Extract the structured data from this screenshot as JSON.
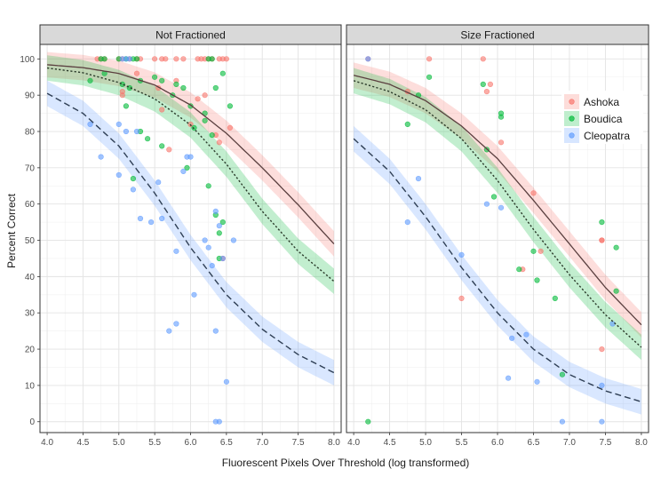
{
  "chart_data": {
    "type": "scatter",
    "xlabel": "Fluorescent Pixels Over Threshold (log transformed)",
    "ylabel": "Percent Correct",
    "xlim": [
      3.9,
      8.1
    ],
    "ylim": [
      -3,
      104
    ],
    "x_ticks": [
      4.0,
      4.5,
      5.0,
      5.5,
      6.0,
      6.5,
      7.0,
      7.5,
      8.0
    ],
    "y_ticks": [
      0,
      10,
      20,
      30,
      40,
      50,
      60,
      70,
      80,
      90,
      100
    ],
    "grid": true,
    "legend_position": "top-right",
    "colors": {
      "Ashoka": "#F8766D",
      "Boudica": "#00BA38",
      "Cleopatra": "#619CFF"
    },
    "series_styles": {
      "Ashoka": "solid",
      "Boudica": "dotted",
      "Cleopatra": "dashed"
    },
    "legend": [
      "Ashoka",
      "Boudica",
      "Cleopatra"
    ],
    "panels": [
      {
        "title": "Not Fractioned",
        "fits": [
          {
            "name": "Ashoka",
            "x": [
              4.0,
              4.5,
              5.0,
              5.5,
              6.0,
              6.5,
              7.0,
              7.5,
              8.0
            ],
            "y": [
              98.4,
              97.6,
              96.0,
              92.8,
              87.3,
              79.5,
              70.0,
              59.8,
              49.0
            ],
            "band": 3.5
          },
          {
            "name": "Boudica",
            "x": [
              4.0,
              4.5,
              5.0,
              5.5,
              6.0,
              6.5,
              7.0,
              7.5,
              8.0
            ],
            "y": [
              97.5,
              96.2,
              93.5,
              89.0,
              81.8,
              71.0,
              58.0,
              47.0,
              38.7
            ],
            "band": 3.5
          },
          {
            "name": "Cleopatra",
            "x": [
              4.0,
              4.5,
              5.0,
              5.5,
              6.0,
              6.5,
              7.0,
              7.5,
              8.0
            ],
            "y": [
              90.5,
              85.0,
              76.0,
              63.0,
              48.0,
              35.0,
              25.5,
              18.5,
              13.5
            ],
            "band": 3.5
          }
        ],
        "points": [
          {
            "name": "Ashoka",
            "x": [
              4.7,
              4.75,
              4.8,
              5.0,
              5.05,
              5.15,
              5.25,
              5.3,
              5.5,
              5.6,
              5.65,
              5.8,
              5.9,
              6.1,
              6.15,
              6.2,
              6.25,
              6.3,
              6.4,
              6.45,
              6.5,
              5.05,
              5.25,
              5.55,
              5.8,
              6.0,
              6.1,
              6.2,
              6.4,
              6.55,
              5.05,
              5.7,
              6.35,
              5.6,
              6.45
            ],
            "y": [
              100,
              100,
              100,
              100,
              100,
              100,
              100,
              100,
              100,
              100,
              100,
              100,
              100,
              100,
              100,
              100,
              100,
              100,
              100,
              100,
              100,
              91,
              96,
              92,
              94,
              82,
              89,
              90,
              77,
              81,
              90,
              75,
              79,
              86,
              45
            ]
          },
          {
            "name": "Boudica",
            "x": [
              4.75,
              4.8,
              5.0,
              5.1,
              5.2,
              5.25,
              6.25,
              6.3,
              4.6,
              4.8,
              5.05,
              5.15,
              5.3,
              5.5,
              5.6,
              5.8,
              5.9,
              6.0,
              6.2,
              6.35,
              6.45,
              6.55,
              5.1,
              5.3,
              5.4,
              5.6,
              5.75,
              5.95,
              6.05,
              6.2,
              6.3,
              6.35,
              6.4,
              6.4,
              6.45,
              5.2,
              6.25
            ],
            "y": [
              100,
              100,
              100,
              100,
              100,
              100,
              100,
              100,
              94,
              96,
              93,
              92,
              94,
              95,
              94,
              93,
              92,
              87,
              85,
              92,
              96,
              87,
              87,
              80,
              78,
              76,
              90,
              70,
              81,
              83,
              79,
              57,
              52,
              45,
              55,
              67,
              65
            ]
          },
          {
            "name": "Cleopatra",
            "x": [
              5.05,
              5.1,
              5.15,
              4.6,
              4.75,
              5.0,
              5.1,
              5.2,
              5.3,
              5.45,
              5.6,
              5.7,
              5.8,
              5.9,
              5.95,
              6.0,
              6.05,
              6.2,
              6.25,
              6.3,
              6.35,
              6.4,
              6.45,
              5.55,
              5.0,
              5.25,
              5.8,
              6.35,
              6.4,
              6.35,
              6.5,
              6.6
            ],
            "y": [
              100,
              100,
              100,
              82,
              73,
              82,
              80,
              64,
              56,
              55,
              56,
              25,
              27,
              69,
              73,
              73,
              35,
              50,
              48,
              43,
              58,
              54,
              45,
              66,
              68,
              80,
              47,
              25,
              0,
              0,
              11,
              50
            ]
          }
        ]
      },
      {
        "title": "Size Fractioned",
        "fits": [
          {
            "name": "Ashoka",
            "x": [
              4.0,
              4.5,
              5.0,
              5.5,
              6.0,
              6.5,
              7.0,
              7.5,
              8.0
            ],
            "y": [
              95.5,
              93.0,
              88.5,
              81.5,
              72.5,
              61.0,
              49.0,
              37.0,
              26.7
            ],
            "band": 3.5
          },
          {
            "name": "Boudica",
            "x": [
              4.0,
              4.5,
              5.0,
              5.5,
              6.0,
              6.5,
              7.0,
              7.5,
              8.0
            ],
            "y": [
              94.0,
              91.0,
              86.0,
              78.0,
              66.5,
              53.0,
              40.5,
              29.5,
              20.5
            ],
            "band": 3.5
          },
          {
            "name": "Cleopatra",
            "x": [
              4.0,
              4.5,
              5.0,
              5.5,
              6.0,
              6.5,
              7.0,
              7.5,
              8.0
            ],
            "y": [
              78.0,
              69.0,
              56.5,
              42.5,
              30.0,
              20.0,
              13.0,
              8.5,
              5.5
            ],
            "band": 3.5
          }
        ],
        "points": [
          {
            "name": "Ashoka",
            "x": [
              4.2,
              5.05,
              5.8,
              4.75,
              5.85,
              5.9,
              6.05,
              6.35,
              6.5,
              6.6,
              7.45,
              7.45,
              7.45,
              5.5
            ],
            "y": [
              100,
              100,
              100,
              91,
              91,
              93,
              77,
              42,
              63,
              47,
              50,
              20,
              50,
              34
            ]
          },
          {
            "name": "Boudica",
            "x": [
              4.9,
              5.05,
              5.8,
              4.75,
              5.85,
              6.05,
              6.05,
              5.95,
              6.3,
              6.5,
              6.55,
              6.8,
              6.9,
              7.45,
              7.65,
              7.65,
              4.2
            ],
            "y": [
              90,
              95,
              93,
              82,
              75,
              85,
              84,
              62,
              42,
              47,
              39,
              34,
              13,
              55,
              36,
              48,
              0
            ]
          },
          {
            "name": "Cleopatra",
            "x": [
              4.2,
              4.9,
              4.75,
              5.5,
              5.85,
              6.05,
              6.15,
              6.2,
              6.4,
              6.55,
              6.9,
              7.45,
              7.45,
              7.6
            ],
            "y": [
              100,
              67,
              55,
              46,
              60,
              59,
              12,
              23,
              24,
              11,
              0,
              0,
              10,
              27
            ]
          }
        ]
      }
    ]
  }
}
